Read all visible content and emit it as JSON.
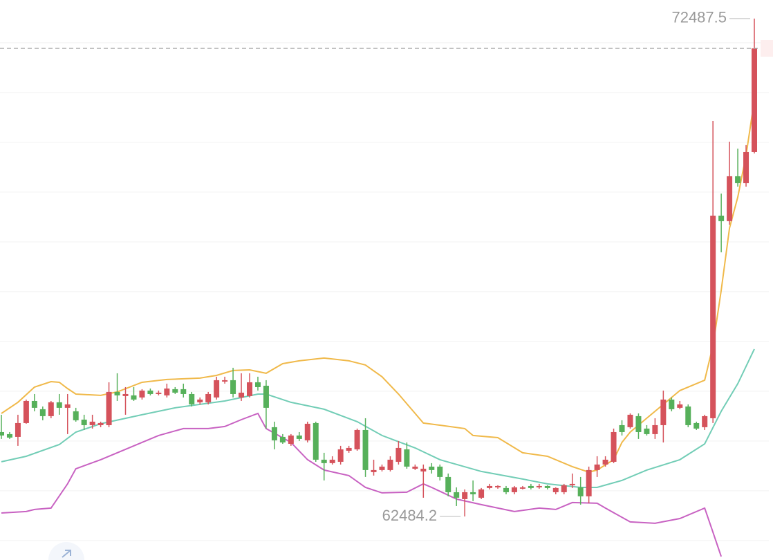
{
  "chart_data": {
    "type": "candlestick",
    "ylim": [
      61610,
      72860
    ],
    "yticks": [
      62000,
      63000,
      64000,
      65000,
      66000,
      67000,
      68000,
      69000,
      70000,
      71000,
      72000
    ],
    "grid": true,
    "up_color": "#d5525b",
    "down_color": "#56b05a",
    "open": [
      64180,
      64139,
      64083,
      64361,
      64805,
      64639,
      64500,
      64778,
      64667,
      64597,
      64430,
      64319,
      64319,
      64319,
      64986,
      64903,
      64917,
      64875,
      65014,
      64944,
      64917,
      65042,
      65042,
      64944,
      64778,
      64778,
      64875,
      65194,
      65222,
      64875,
      64903,
      65180,
      65111,
      64278,
      64083,
      63944,
      64111,
      64014,
      64361,
      63625,
      63556,
      63583,
      63805,
      63833,
      64222,
      63375,
      63417,
      63417,
      63583,
      63833,
      63444,
      63389,
      63486,
      63486,
      63278,
      62972,
      62833,
      62972,
      62861,
      63056,
      63069,
      63056,
      62972,
      63042,
      63097,
      63069,
      63097,
      62972,
      62972,
      63111,
      63069,
      62889,
      63417,
      63528,
      63583,
      64319,
      64278,
      64500,
      64250,
      64139,
      64319,
      64833,
      64667,
      64694,
      64361,
      64278,
      64458,
      68528,
      68417,
      69319,
      69180,
      69805
    ],
    "high": [
      64528,
      64180,
      64528,
      64833,
      64944,
      64694,
      64805,
      64944,
      64944,
      64667,
      64528,
      64528,
      64389,
      65180,
      65361,
      65083,
      65083,
      65042,
      65055,
      65014,
      65153,
      65083,
      65153,
      64986,
      64875,
      64986,
      65292,
      65292,
      65472,
      65361,
      65361,
      65292,
      65222,
      64389,
      64139,
      64139,
      64180,
      64389,
      64389,
      63764,
      63694,
      63903,
      63903,
      64250,
      64458,
      63625,
      63528,
      63694,
      64000,
      63972,
      63528,
      63528,
      63556,
      63528,
      63347,
      63069,
      63028,
      63208,
      63056,
      63139,
      63111,
      63097,
      63097,
      63097,
      63139,
      63139,
      63111,
      63069,
      63139,
      63347,
      63278,
      63486,
      63694,
      63694,
      64250,
      64417,
      64555,
      64555,
      64319,
      64458,
      65014,
      64875,
      64805,
      64736,
      64389,
      64528,
      70430,
      68972,
      70014,
      69875,
      69944,
      72487.5
    ],
    "low": [
      64042,
      64042,
      63903,
      64347,
      64597,
      64417,
      64458,
      64528,
      64139,
      64389,
      64222,
      64250,
      64278,
      64278,
      64805,
      64528,
      64805,
      64833,
      64917,
      64917,
      64875,
      64944,
      64875,
      64694,
      64736,
      64736,
      64833,
      65153,
      64875,
      64805,
      64875,
      65014,
      64250,
      63833,
      63944,
      63903,
      64000,
      63972,
      63583,
      63208,
      63528,
      63528,
      63764,
      63805,
      63278,
      63306,
      63389,
      63389,
      63528,
      63444,
      63417,
      62861,
      63347,
      63208,
      62889,
      62694,
      62484.2,
      62792,
      62833,
      63028,
      63042,
      62930,
      62930,
      63028,
      63028,
      63042,
      63028,
      62930,
      62930,
      63056,
      62722,
      62750,
      63278,
      63486,
      63556,
      64111,
      64250,
      64042,
      64111,
      64042,
      63972,
      64597,
      64639,
      64278,
      64222,
      64222,
      64361,
      67792,
      68347,
      69111,
      69111,
      69778
    ],
    "close": [
      64111,
      64069,
      64361,
      64805,
      64667,
      64500,
      64778,
      64667,
      64736,
      64417,
      64319,
      64389,
      64361,
      64986,
      64917,
      64944,
      64833,
      65014,
      64944,
      64972,
      65055,
      64972,
      64944,
      64736,
      64833,
      64944,
      65222,
      65222,
      64944,
      64972,
      65180,
      65083,
      64667,
      64014,
      63972,
      64111,
      64042,
      64347,
      63625,
      63556,
      63625,
      63833,
      63861,
      64222,
      63417,
      63417,
      63486,
      63625,
      63861,
      63486,
      63486,
      63444,
      63417,
      63278,
      62972,
      62861,
      62972,
      62930,
      63028,
      63097,
      63097,
      62972,
      63069,
      63069,
      63056,
      63097,
      63056,
      63056,
      63111,
      63139,
      62889,
      63417,
      63528,
      63625,
      64180,
      64180,
      64528,
      64180,
      64139,
      64319,
      64833,
      64639,
      64736,
      64319,
      64250,
      64500,
      68528,
      68417,
      69319,
      69180,
      69805,
      71889
    ],
    "series": [
      {
        "color": "#f0b94a",
        "x": [
          0,
          2,
          4,
          6,
          7,
          8,
          9,
          12,
          14,
          17,
          20,
          24,
          26,
          28,
          30,
          32,
          34,
          36,
          39,
          42,
          44,
          46,
          48,
          50,
          51,
          53,
          56,
          57,
          60,
          63,
          66,
          69,
          71,
          72,
          74,
          75,
          76,
          78,
          80,
          82,
          84,
          85,
          86,
          87,
          88,
          89,
          90,
          91
        ],
        "values": [
          64555,
          64778,
          65083,
          65194,
          65180,
          65055,
          64944,
          64917,
          64986,
          65180,
          65236,
          65264,
          65319,
          65417,
          65430,
          65361,
          65555,
          65611,
          65667,
          65611,
          65528,
          65292,
          64944,
          64555,
          64361,
          64319,
          64250,
          64111,
          64069,
          63764,
          63694,
          63486,
          63375,
          63417,
          63625,
          63972,
          64180,
          64458,
          64736,
          65014,
          65153,
          65222,
          65917,
          67028,
          68278,
          68903,
          69736,
          70847
        ]
      },
      {
        "color": "#72cdb6",
        "x": [
          0,
          3,
          7,
          9,
          12,
          17,
          21,
          24,
          27,
          31,
          32,
          35,
          39,
          43,
          46,
          50,
          53,
          58,
          63,
          66,
          70,
          72,
          75,
          78,
          82,
          85,
          87,
          89,
          91
        ],
        "values": [
          63583,
          63694,
          63930,
          64180,
          64347,
          64528,
          64667,
          64736,
          64805,
          64944,
          64944,
          64778,
          64639,
          64389,
          64111,
          63861,
          63625,
          63389,
          63236,
          63139,
          63069,
          63069,
          63208,
          63417,
          63625,
          63944,
          64597,
          65153,
          65847
        ]
      },
      {
        "color": "#c862c2",
        "x": [
          0,
          3,
          4,
          6,
          8,
          9,
          12,
          15,
          19,
          22,
          25,
          27,
          29,
          31,
          32,
          35,
          37,
          39,
          42,
          44,
          46,
          49,
          51,
          52,
          55,
          58,
          62,
          65,
          67,
          69,
          72,
          73,
          76,
          79,
          82,
          85,
          86,
          87
        ],
        "values": [
          62555,
          62583,
          62625,
          62653,
          63139,
          63444,
          63625,
          63833,
          64111,
          64250,
          64250,
          64292,
          64430,
          64555,
          64250,
          63972,
          63625,
          63417,
          63306,
          63069,
          62958,
          62972,
          63139,
          63069,
          62833,
          62722,
          62583,
          62653,
          62625,
          62764,
          62750,
          62653,
          62375,
          62347,
          62444,
          62653,
          62167,
          61680
        ]
      }
    ]
  }
}
